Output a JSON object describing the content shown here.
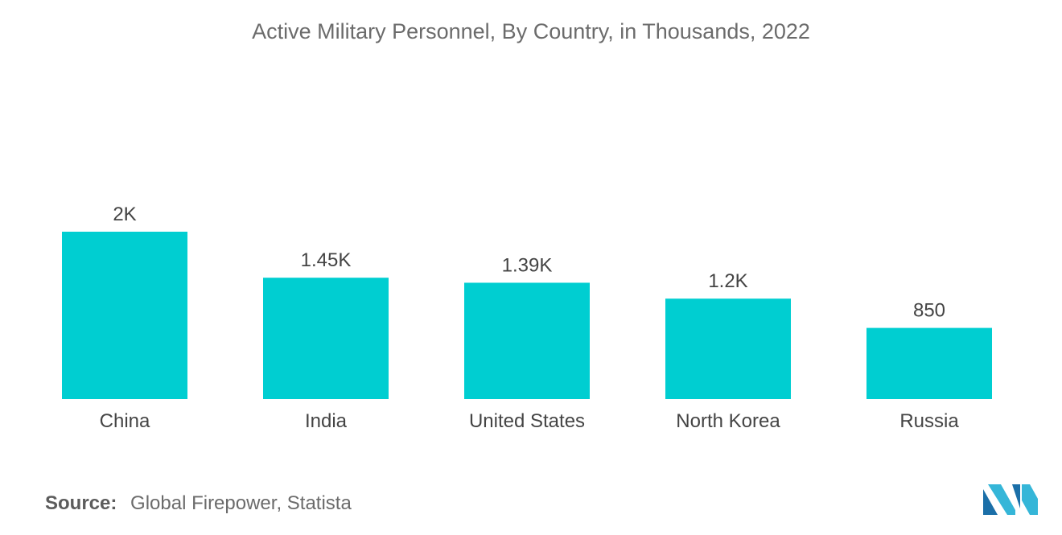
{
  "chart_data": {
    "type": "bar",
    "title": "Active Military Personnel, By Country, in Thousands, 2022",
    "categories": [
      "China",
      "India",
      "United States",
      "North Korea",
      "Russia"
    ],
    "values": [
      2000,
      1450,
      1390,
      1200,
      850
    ],
    "value_labels": [
      "2K",
      "1.45K",
      "1.39K",
      "1.2K",
      "850"
    ],
    "xlabel": "",
    "ylabel": "",
    "ylim": [
      0,
      2000
    ],
    "grid": false,
    "legend": "none",
    "bar_color": "#00ced1"
  },
  "source": {
    "label": "Source:",
    "text": "Global Firepower, Statista"
  },
  "logo": {
    "icon": "mordor-intelligence-logo-icon",
    "colors": [
      "#1b6fa8",
      "#35b6d8"
    ]
  }
}
